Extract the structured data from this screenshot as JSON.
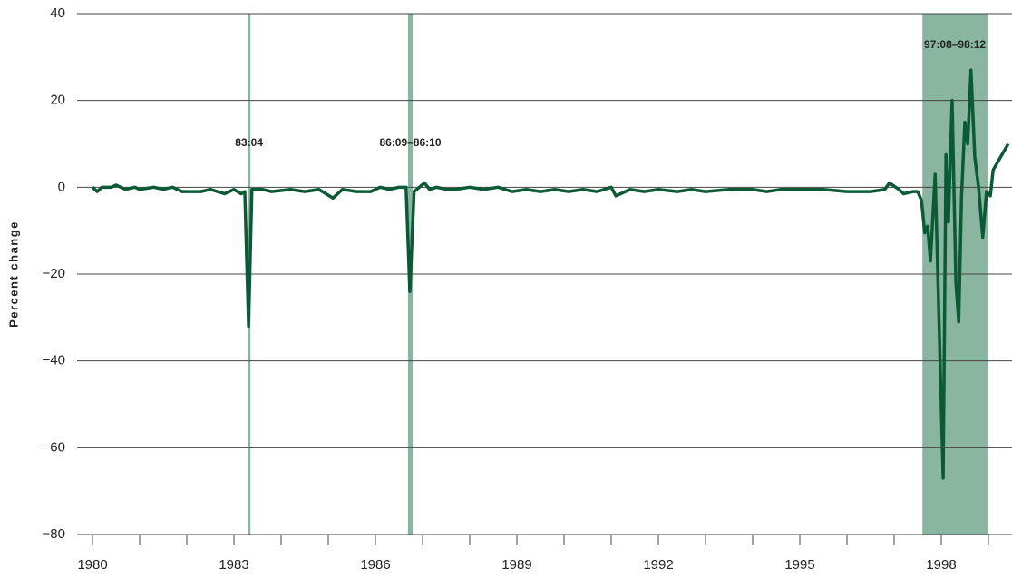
{
  "chart_data": {
    "type": "line",
    "y_label": "Percent change",
    "color": "#0b5a36",
    "shade_color": "#8ab5a0",
    "grid": true,
    "xlim": [
      1980,
      1999.5
    ],
    "xticks": [
      1980,
      1983,
      1986,
      1989,
      1992,
      1995,
      1998
    ],
    "xminor_ticks": [
      1981,
      1982,
      1984,
      1985,
      1987,
      1988,
      1990,
      1991,
      1993,
      1994,
      1996,
      1997,
      1999
    ],
    "ylim": [
      -80,
      40
    ],
    "yticks": [
      {
        "value": -80,
        "label": "−80"
      },
      {
        "value": -60,
        "label": "−60"
      },
      {
        "value": -40,
        "label": "−40"
      },
      {
        "value": -20,
        "label": "−20"
      },
      0,
      20,
      40
    ],
    "shaded": [
      {
        "label": "83:04",
        "start": 1983.29,
        "end": 1983.35
      },
      {
        "label": "86:09–86:10",
        "start": 1986.69,
        "end": 1986.79
      },
      {
        "label": "97:08–98:12",
        "start": 1997.6,
        "end": 1998.98
      }
    ],
    "x": [
      1980.0,
      1980.1,
      1980.2,
      1980.4,
      1980.5,
      1980.7,
      1980.9,
      1981.0,
      1981.3,
      1981.5,
      1981.7,
      1981.9,
      1982.3,
      1982.5,
      1982.8,
      1983.0,
      1983.15,
      1983.23,
      1983.31,
      1983.38,
      1983.6,
      1983.8,
      1984.2,
      1984.5,
      1984.8,
      1985.1,
      1985.3,
      1985.6,
      1985.9,
      1986.1,
      1986.3,
      1986.5,
      1986.65,
      1986.73,
      1986.82,
      1987.04,
      1987.15,
      1987.3,
      1987.5,
      1987.7,
      1988.0,
      1988.3,
      1988.6,
      1988.9,
      1989.2,
      1989.5,
      1989.8,
      1990.1,
      1990.4,
      1990.7,
      1991.0,
      1991.1,
      1991.4,
      1991.7,
      1992.0,
      1992.4,
      1992.7,
      1993.0,
      1993.5,
      1994.0,
      1994.3,
      1994.6,
      1995.0,
      1995.5,
      1996.0,
      1996.5,
      1996.8,
      1996.9,
      1997.1,
      1997.2,
      1997.4,
      1997.5,
      1997.58,
      1997.65,
      1997.71,
      1997.77,
      1997.87,
      1998.04,
      1998.1,
      1998.15,
      1998.23,
      1998.31,
      1998.37,
      1998.43,
      1998.5,
      1998.56,
      1998.63,
      1998.71,
      1998.79,
      1998.88,
      1998.96,
      1999.04,
      1999.1,
      1999.42
    ],
    "values": [
      0,
      -1,
      0,
      0,
      0.5,
      -0.5,
      0,
      -0.5,
      0,
      -0.5,
      0,
      -1,
      -1,
      -0.5,
      -1.5,
      -0.5,
      -1.5,
      -1,
      -32,
      -0.5,
      -0.5,
      -1,
      -0.5,
      -1,
      -0.5,
      -2.5,
      -0.5,
      -1,
      -1,
      0,
      -0.5,
      0,
      0,
      -24,
      -1,
      1,
      -0.5,
      0,
      -0.5,
      -0.5,
      0,
      -0.5,
      0,
      -1,
      -0.5,
      -1,
      -0.5,
      -1,
      -0.5,
      -1,
      0,
      -2,
      -0.5,
      -1,
      -0.5,
      -1,
      -0.5,
      -1,
      -0.5,
      -0.5,
      -1,
      -0.5,
      -0.5,
      -0.5,
      -1,
      -1,
      -0.5,
      1,
      -0.5,
      -1.5,
      -1,
      -1,
      -3,
      -10.5,
      -9,
      -17,
      3,
      -67,
      7.5,
      -8,
      20,
      -22,
      -31,
      -2,
      15,
      10,
      27,
      7,
      0,
      -11.5,
      -1,
      -2,
      4,
      10
    ]
  }
}
